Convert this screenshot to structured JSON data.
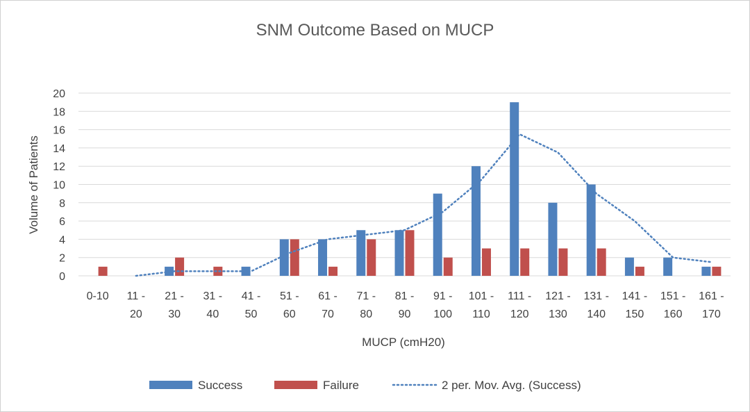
{
  "chart_data": {
    "type": "bar",
    "title": "SNM Outcome Based on MUCP",
    "xlabel": "MUCP  (cmH20)",
    "ylabel": "Volume of Patients",
    "ylim": [
      0,
      20
    ],
    "yticks": [
      "0",
      "2",
      "4",
      "6",
      "8",
      "10",
      "12",
      "14",
      "16",
      "18",
      "20"
    ],
    "grid": true,
    "legend_position": "bottom",
    "categories": [
      [
        "0-10",
        ""
      ],
      [
        "11 -",
        "20"
      ],
      [
        "21 -",
        "30"
      ],
      [
        "31 -",
        "40"
      ],
      [
        "41 -",
        "50"
      ],
      [
        "51 -",
        "60"
      ],
      [
        "61 -",
        "70"
      ],
      [
        "71 -",
        "80"
      ],
      [
        "81 -",
        "90"
      ],
      [
        "91 -",
        "100"
      ],
      [
        "101 -",
        "110"
      ],
      [
        "111 -",
        "120"
      ],
      [
        "121 -",
        "130"
      ],
      [
        "131 -",
        "140"
      ],
      [
        "141 -",
        "150"
      ],
      [
        "151 -",
        "160"
      ],
      [
        "161 -",
        "170"
      ]
    ],
    "series": [
      {
        "name": "Success",
        "color": "#4f81bd",
        "values": [
          0,
          0,
          1,
          0,
          1,
          4,
          4,
          5,
          5,
          9,
          12,
          19,
          8,
          10,
          2,
          2,
          1
        ]
      },
      {
        "name": "Failure",
        "color": "#c0504d",
        "values": [
          1,
          0,
          2,
          1,
          0,
          4,
          1,
          4,
          5,
          2,
          3,
          3,
          3,
          3,
          1,
          0,
          1
        ]
      }
    ],
    "trendline": {
      "name": "2 per. Mov. Avg. (Success)",
      "color": "#4f81bd",
      "style": "dotted",
      "values": [
        null,
        0,
        0.5,
        0.5,
        0.5,
        2.5,
        4,
        4.5,
        5,
        7,
        10.5,
        15.5,
        13.5,
        9,
        6,
        2,
        1.5
      ]
    }
  }
}
